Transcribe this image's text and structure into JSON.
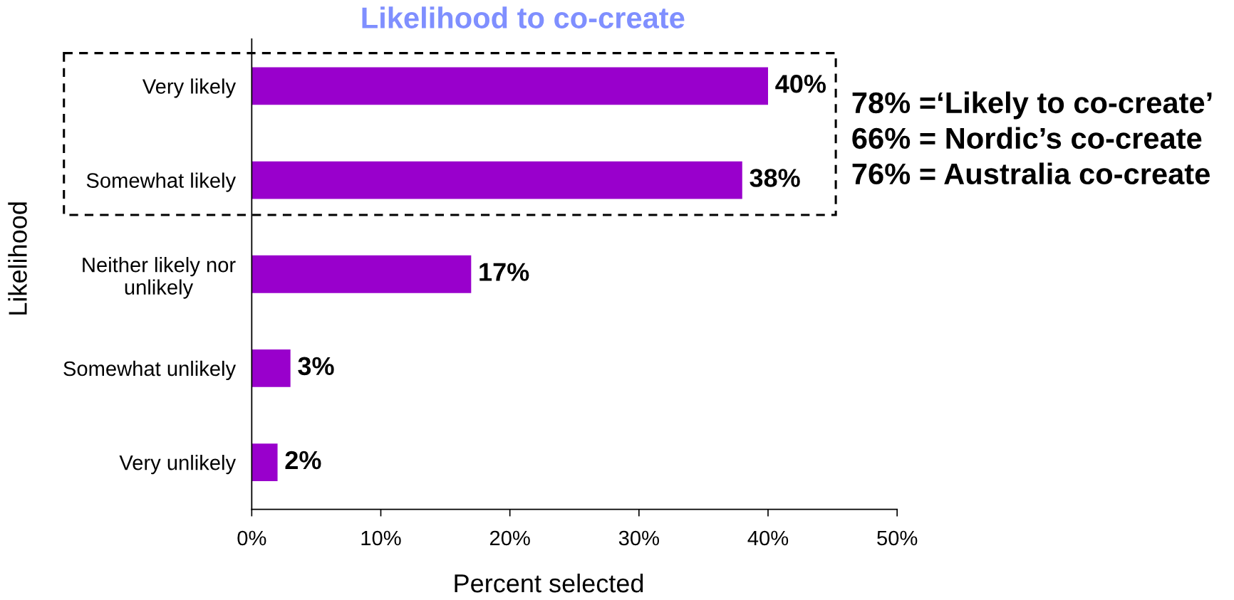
{
  "chart_data": {
    "type": "bar",
    "orientation": "horizontal",
    "title": "Likelihood to co-create",
    "xlabel": "Percent selected",
    "ylabel": "Likelihood",
    "categories": [
      "Very likely",
      "Somewhat likely",
      "Neither likely nor\nunlikely",
      "Somewhat unlikely",
      "Very unlikely"
    ],
    "values": [
      40,
      38,
      17,
      3,
      2
    ],
    "color": "#9900cc",
    "value_labels": [
      "40%",
      "38%",
      "17%",
      "3%",
      "2%"
    ],
    "xlim": [
      0,
      50
    ],
    "xticks": [
      {
        "value": 0,
        "label": "0%"
      },
      {
        "value": 10,
        "label": "10%"
      },
      {
        "value": 20,
        "label": "20%"
      },
      {
        "value": 30,
        "label": "30%"
      },
      {
        "value": 40,
        "label": "40%"
      },
      {
        "value": 50,
        "label": "50%"
      }
    ],
    "annotations": [
      "78% =‘Likely to co-create’",
      "66% = Nordic’s co-create",
      "76% = Australia co-create"
    ]
  }
}
